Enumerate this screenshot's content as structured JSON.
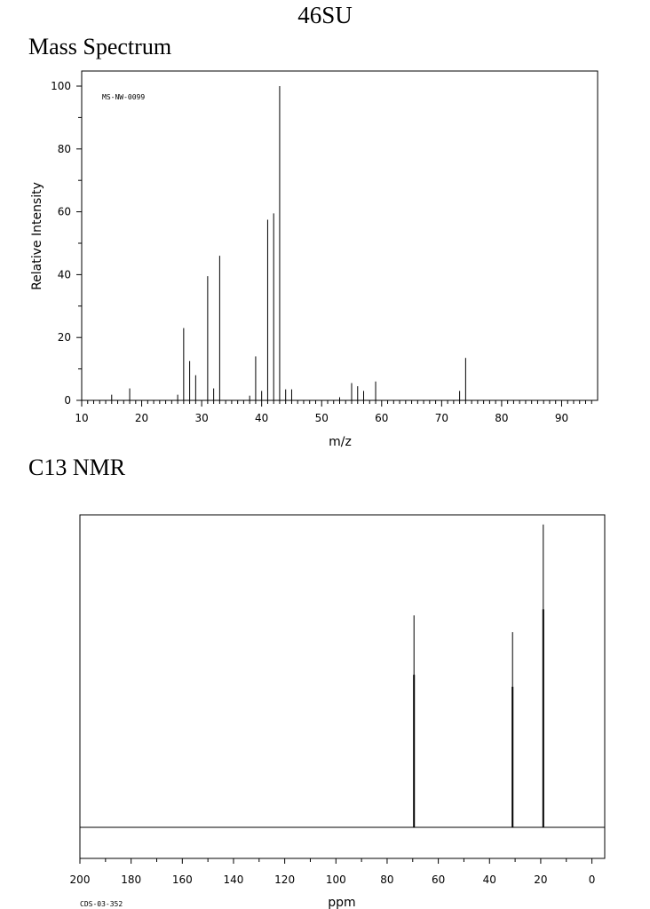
{
  "page": {
    "title": "46SU",
    "ms_heading": "Mass Spectrum",
    "nmr_heading": "C13 NMR"
  },
  "chart_data": [
    {
      "type": "bar",
      "title": "Mass Spectrum",
      "xlabel": "m/z",
      "ylabel": "Relative Intensity",
      "annotation": "MS-NW-0099",
      "xlim": [
        10,
        96
      ],
      "ylim": [
        0,
        105
      ],
      "xticks": [
        10,
        20,
        30,
        40,
        50,
        60,
        70,
        80,
        90
      ],
      "yticks": [
        0,
        20,
        40,
        60,
        80,
        100
      ],
      "grid": false,
      "peaks": [
        {
          "mz": 15,
          "intensity": 1.8
        },
        {
          "mz": 18,
          "intensity": 3.8
        },
        {
          "mz": 26,
          "intensity": 1.8
        },
        {
          "mz": 27,
          "intensity": 23
        },
        {
          "mz": 28,
          "intensity": 12.5
        },
        {
          "mz": 29,
          "intensity": 8
        },
        {
          "mz": 31,
          "intensity": 39.5
        },
        {
          "mz": 32,
          "intensity": 3.8
        },
        {
          "mz": 33,
          "intensity": 46
        },
        {
          "mz": 38,
          "intensity": 1.5
        },
        {
          "mz": 39,
          "intensity": 14
        },
        {
          "mz": 40,
          "intensity": 3
        },
        {
          "mz": 41,
          "intensity": 57.5
        },
        {
          "mz": 42,
          "intensity": 59.5
        },
        {
          "mz": 43,
          "intensity": 100
        },
        {
          "mz": 44,
          "intensity": 3.5
        },
        {
          "mz": 45,
          "intensity": 3.5
        },
        {
          "mz": 53,
          "intensity": 1
        },
        {
          "mz": 55,
          "intensity": 5.5
        },
        {
          "mz": 56,
          "intensity": 4.5
        },
        {
          "mz": 57,
          "intensity": 3
        },
        {
          "mz": 59,
          "intensity": 6
        },
        {
          "mz": 73,
          "intensity": 3
        },
        {
          "mz": 74,
          "intensity": 13.5
        }
      ]
    },
    {
      "type": "line",
      "title": "C13 NMR",
      "xlabel": "ppm",
      "annotation": "CDS-03-352",
      "xlim": [
        200,
        -5
      ],
      "xticks": [
        200,
        180,
        160,
        140,
        120,
        100,
        80,
        60,
        40,
        20,
        0
      ],
      "grid": false,
      "peaks": [
        {
          "ppm": 69.5,
          "height": 0.63
        },
        {
          "ppm": 31.0,
          "height": 0.58
        },
        {
          "ppm": 19.0,
          "height": 0.9
        }
      ]
    }
  ]
}
